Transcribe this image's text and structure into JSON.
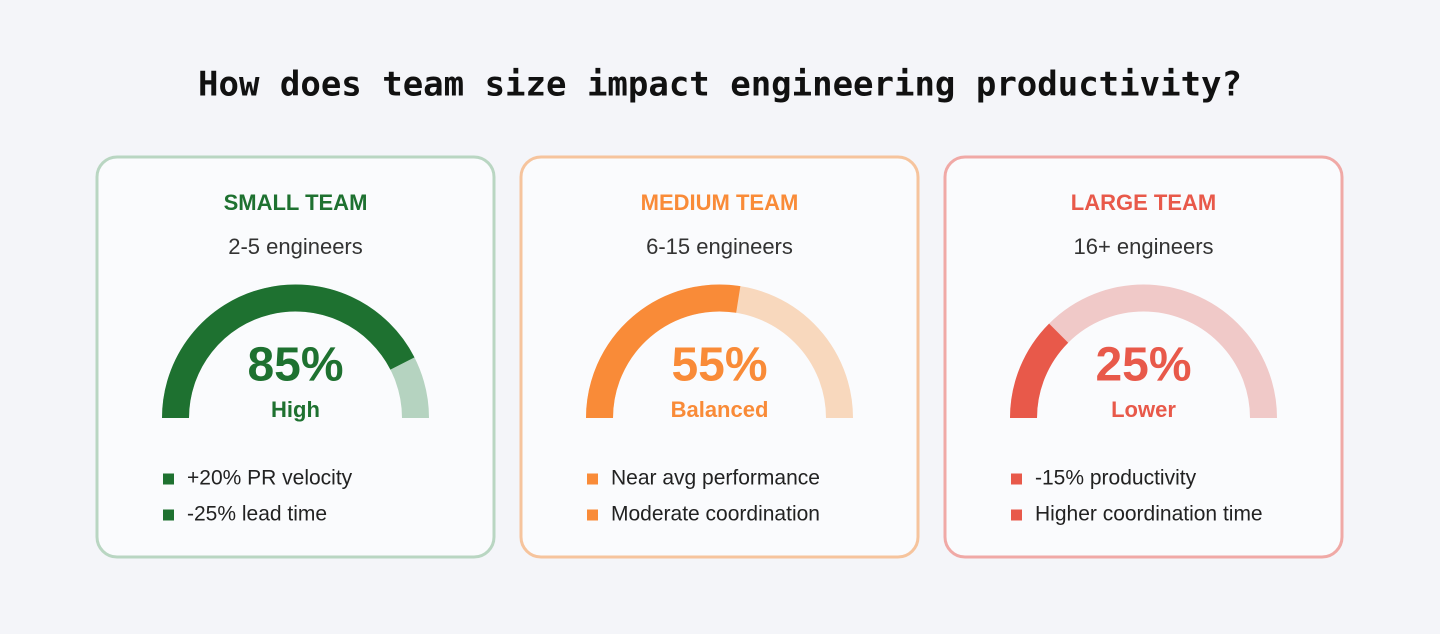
{
  "title": "How does team size impact engineering productivity?",
  "chart_data": [
    {
      "type": "gauge",
      "title": "SMALL TEAM",
      "subtitle": "2-5 engineers",
      "values": [
        85
      ],
      "value_labels": [
        "85%"
      ],
      "status": "High",
      "notes": [
        "+20% PR velocity",
        "-25% lead time"
      ],
      "ylim": [
        0,
        100
      ],
      "color": "#1e7130",
      "track_color": "#b5d3c0",
      "border_color": "#b9d6c2"
    },
    {
      "type": "gauge",
      "title": "MEDIUM TEAM",
      "subtitle": "6-15 engineers",
      "values": [
        55
      ],
      "value_labels": [
        "55%"
      ],
      "status": "Balanced",
      "notes": [
        "Near avg performance",
        "Moderate coordination"
      ],
      "ylim": [
        0,
        100
      ],
      "color": "#f98b38",
      "track_color": "#f8d8bd",
      "border_color": "#f6c49d"
    },
    {
      "type": "gauge",
      "title": "LARGE TEAM",
      "subtitle": "16+ engineers",
      "values": [
        25
      ],
      "value_labels": [
        "25%"
      ],
      "status": "Lower",
      "notes": [
        "-15% productivity",
        "Higher coordination time"
      ],
      "ylim": [
        0,
        100
      ],
      "color": "#e8594a",
      "track_color": "#f0c9c8",
      "border_color": "#f0a9a6"
    }
  ]
}
